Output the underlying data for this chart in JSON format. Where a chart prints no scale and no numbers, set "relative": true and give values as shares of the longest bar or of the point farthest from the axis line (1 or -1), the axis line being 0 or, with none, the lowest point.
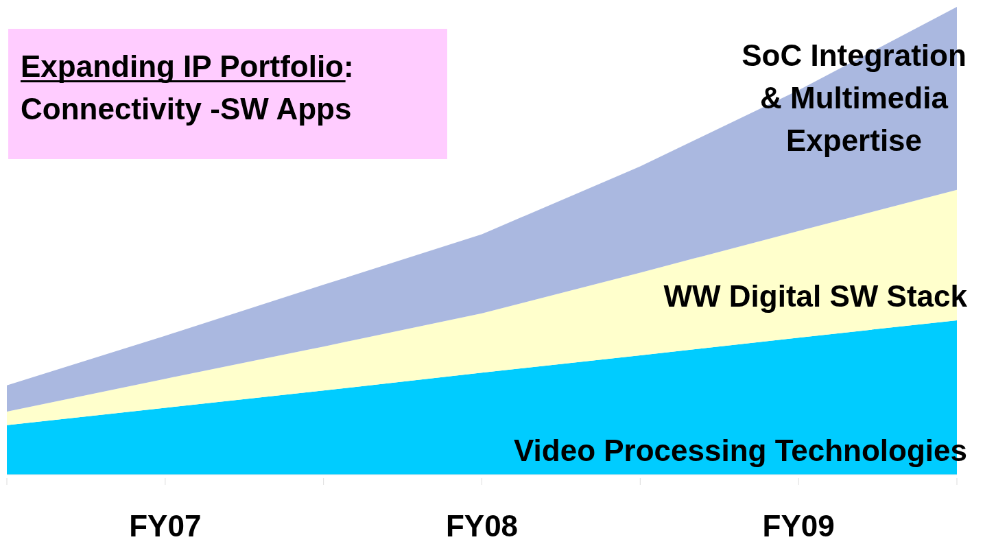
{
  "chart_data": {
    "type": "area",
    "stacked": true,
    "relative": true,
    "categories": [
      null,
      "FY07",
      null,
      "FY08",
      null,
      "FY09",
      null
    ],
    "annotations": [
      "Expanding IP Portfolio:",
      "Connectivity -SW Apps"
    ],
    "series": [
      {
        "name": "Video Processing Technologies",
        "color": "#00ccff",
        "values": [
          0.106,
          0.143,
          0.18,
          0.218,
          0.255,
          0.293,
          0.33
        ]
      },
      {
        "name": "WW Digital SW Stack",
        "color": "#ffffcc",
        "values": [
          0.029,
          0.062,
          0.094,
          0.127,
          0.177,
          0.228,
          0.279
        ]
      },
      {
        "name": "SoC Integration & Multimedia Expertise",
        "color": "#aab8e0",
        "values": [
          0.056,
          0.092,
          0.132,
          0.169,
          0.227,
          0.301,
          0.391
        ]
      }
    ]
  }
}
